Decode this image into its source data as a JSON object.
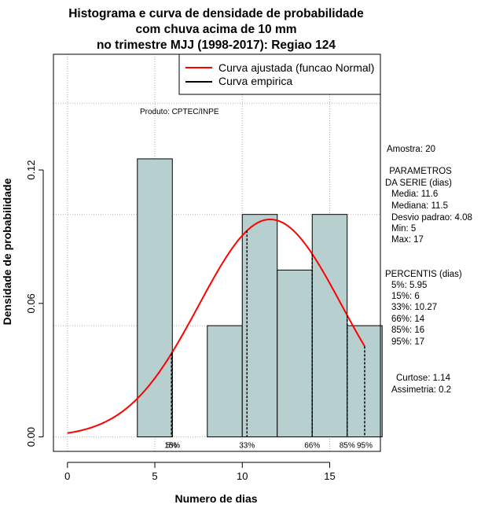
{
  "chart_data": {
    "type": "bar",
    "title_lines": [
      "Histograma e curva de densidade de probabilidade",
      "com chuva acima de 10 mm",
      "no trimestre MJJ (1998-2017): Regiao 124"
    ],
    "xlabel": "Numero de dias",
    "ylabel": "Densidade de probabilidade",
    "xlim": [
      -0.8,
      17.9
    ],
    "ylim": [
      -0.0065,
      0.172
    ],
    "x_ticks": [
      0,
      5,
      10,
      15
    ],
    "x_tick_labels": [
      "0",
      "5",
      "10",
      "15"
    ],
    "y_ticks": [
      0.0,
      0.06,
      0.12
    ],
    "y_tick_labels": [
      "0.00",
      "0.06",
      "0.12"
    ],
    "grid_y": [
      0.0,
      0.05,
      0.1,
      0.15
    ],
    "grid_x": [
      0,
      5,
      10,
      15
    ],
    "histogram": [
      {
        "x0": 4,
        "x1": 6,
        "density": 0.125
      },
      {
        "x0": 6,
        "x1": 8,
        "density": 0.0
      },
      {
        "x0": 8,
        "x1": 10,
        "density": 0.05
      },
      {
        "x0": 10,
        "x1": 12,
        "density": 0.1
      },
      {
        "x0": 12,
        "x1": 14,
        "density": 0.075
      },
      {
        "x0": 14,
        "x1": 16,
        "density": 0.1
      },
      {
        "x0": 16,
        "x1": 18,
        "density": 0.05
      }
    ],
    "normal_fit": {
      "mean": 11.6,
      "sd": 4.08,
      "x_start": 0,
      "x_end": 17,
      "color": "#ff0000"
    },
    "percentile_lines": [
      {
        "label": "5%",
        "x": 5.95
      },
      {
        "label": "15%",
        "x": 6
      },
      {
        "label": "33%",
        "x": 10.27
      },
      {
        "label": "66%",
        "x": 14
      },
      {
        "label": "85%",
        "x": 16
      },
      {
        "label": "95%",
        "x": 17
      }
    ],
    "bar_fill": "#b8cfcf",
    "legend": {
      "placement": "top-right",
      "entries": [
        {
          "label": "Curva ajustada (funcao Normal)",
          "color": "#ff0000"
        },
        {
          "label": "Curva empirica",
          "color": "#000000"
        }
      ]
    },
    "annotation": "Produto: CPTEC/INPE"
  },
  "side_panel": {
    "amostra": "Amostra: 20",
    "param_header": [
      " PARAMETROS",
      "DA SERIE (dias)"
    ],
    "params": [
      "Media: 11.6",
      "Mediana: 11.5",
      "Desvio padrao: 4.08",
      "Min: 5",
      "Max: 17"
    ],
    "perc_header": "PERCENTIS (dias)",
    "percentis": [
      "5%: 5.95",
      "15%: 6",
      "33%: 10.27",
      "66%: 14",
      "85%: 16",
      "95%: 17"
    ],
    "stats": [
      "Curtose: 1.14",
      "Assimetria: 0.2"
    ]
  }
}
